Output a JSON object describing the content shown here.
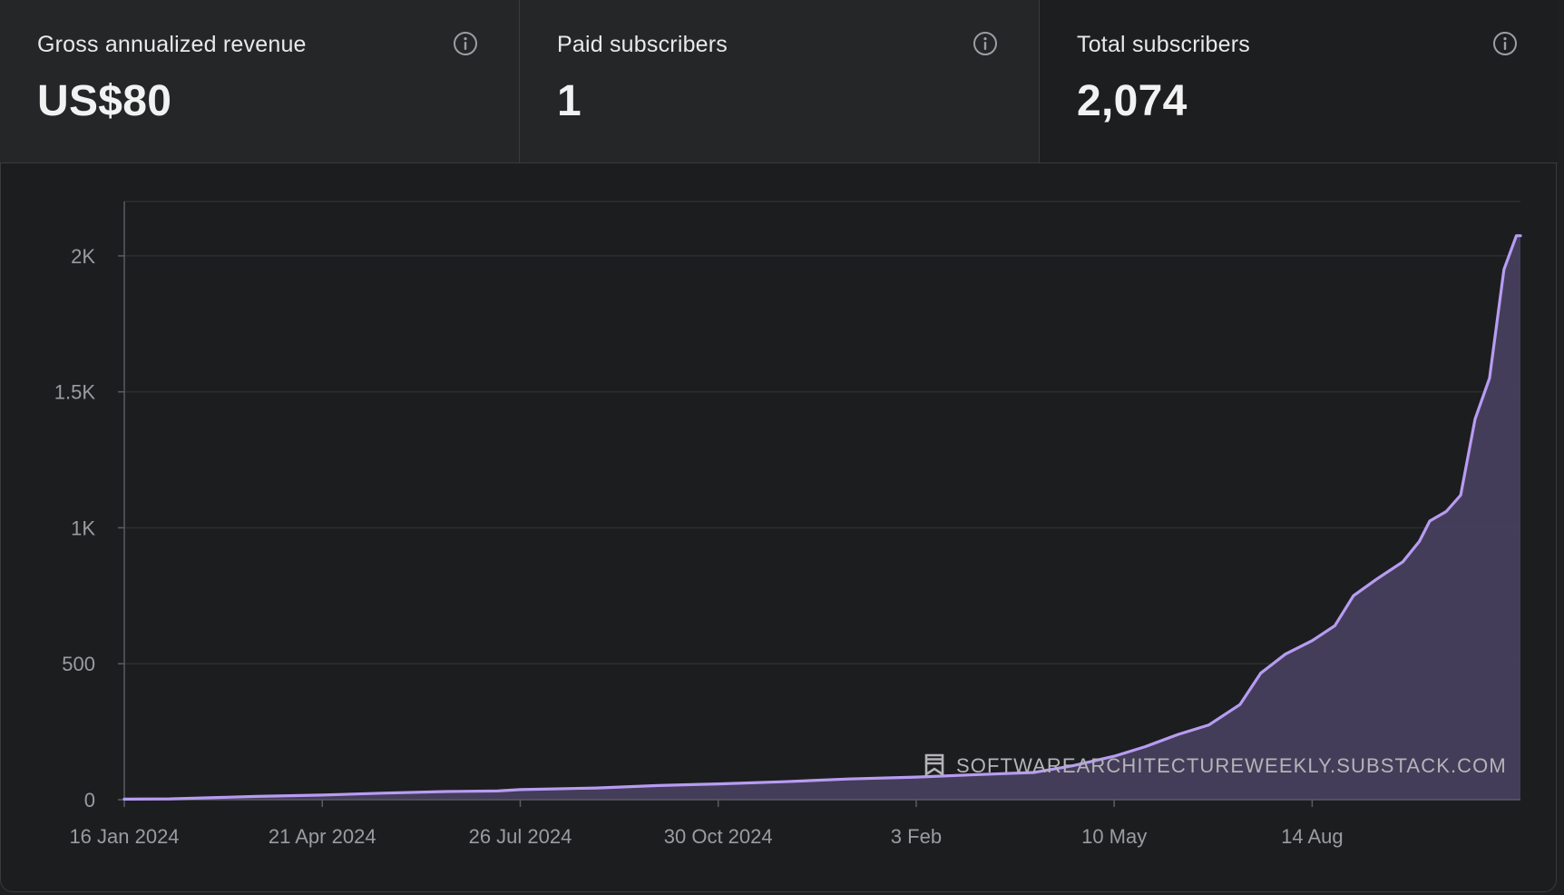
{
  "stats": [
    {
      "label": "Gross annualized revenue",
      "value": "US$80",
      "selected": false
    },
    {
      "label": "Paid subscribers",
      "value": "1",
      "selected": false
    },
    {
      "label": "Total subscribers",
      "value": "2,074",
      "selected": true
    }
  ],
  "colors": {
    "line": "#b79cf2",
    "area": "#473f5d",
    "grid": "#2c2e31",
    "axis": "#5a5c60",
    "tick_label": "#9b9ca0",
    "watermark": "#b4b4b8"
  },
  "watermark": {
    "text": "SOFTWAREARCHITECTUREWEEKLY.SUBSTACK.COM",
    "icon": "bookmark-icon"
  },
  "chart_data": {
    "type": "area",
    "title": "",
    "xlabel": "",
    "ylabel": "",
    "ylim": [
      0,
      2200
    ],
    "xlim": [
      "2024-01-16",
      "2025-11-23"
    ],
    "grid": true,
    "legend": "none",
    "y_ticks": [
      {
        "value": 0,
        "label": "0"
      },
      {
        "value": 500,
        "label": "500"
      },
      {
        "value": 1000,
        "label": "1K"
      },
      {
        "value": 1500,
        "label": "1.5K"
      },
      {
        "value": 2000,
        "label": "2K"
      }
    ],
    "x_ticks": [
      {
        "date": "2024-01-16",
        "label": "16 Jan 2024"
      },
      {
        "date": "2024-04-21",
        "label": "21 Apr 2024"
      },
      {
        "date": "2024-07-26",
        "label": "26 Jul 2024"
      },
      {
        "date": "2024-10-30",
        "label": "30 Oct 2024"
      },
      {
        "date": "2025-02-03",
        "label": "3 Feb"
      },
      {
        "date": "2025-05-10",
        "label": "10 May"
      },
      {
        "date": "2025-08-14",
        "label": "14 Aug"
      }
    ],
    "series": [
      {
        "points": [
          [
            "2024-01-16",
            2
          ],
          [
            "2024-02-07",
            3
          ],
          [
            "2024-03-01",
            8
          ],
          [
            "2024-03-20",
            12
          ],
          [
            "2024-04-21",
            17
          ],
          [
            "2024-05-20",
            24
          ],
          [
            "2024-06-20",
            30
          ],
          [
            "2024-07-15",
            32
          ],
          [
            "2024-07-26",
            37
          ],
          [
            "2024-09-01",
            43
          ],
          [
            "2024-10-01",
            52
          ],
          [
            "2024-10-30",
            58
          ],
          [
            "2024-12-01",
            66
          ],
          [
            "2025-01-01",
            76
          ],
          [
            "2025-02-03",
            83
          ],
          [
            "2025-03-01",
            91
          ],
          [
            "2025-04-01",
            100
          ],
          [
            "2025-04-20",
            125
          ],
          [
            "2025-05-10",
            160
          ],
          [
            "2025-05-25",
            195
          ],
          [
            "2025-06-10",
            240
          ],
          [
            "2025-06-25",
            275
          ],
          [
            "2025-07-10",
            350
          ],
          [
            "2025-07-20",
            465
          ],
          [
            "2025-08-01",
            535
          ],
          [
            "2025-08-14",
            585
          ],
          [
            "2025-08-25",
            640
          ],
          [
            "2025-09-03",
            750
          ],
          [
            "2025-09-14",
            810
          ],
          [
            "2025-09-27",
            875
          ],
          [
            "2025-10-05",
            950
          ],
          [
            "2025-10-10",
            1025
          ],
          [
            "2025-10-18",
            1060
          ],
          [
            "2025-10-25",
            1120
          ],
          [
            "2025-11-01",
            1400
          ],
          [
            "2025-11-08",
            1550
          ],
          [
            "2025-11-15",
            1950
          ],
          [
            "2025-11-21",
            2074
          ],
          [
            "2025-11-23",
            2074
          ]
        ]
      }
    ]
  }
}
